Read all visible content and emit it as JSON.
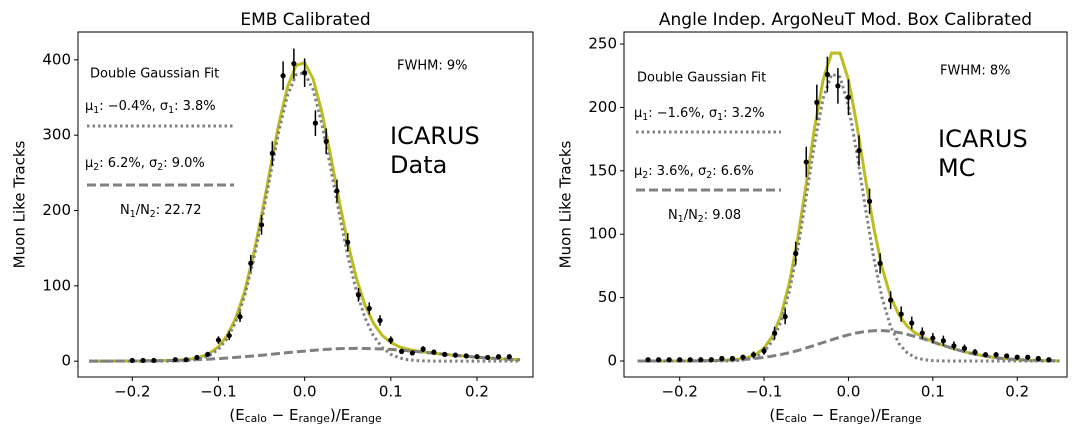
{
  "chart_data": [
    {
      "type": "errorbar",
      "title": "EMB Calibrated",
      "xlabel": [
        "(E",
        "calo",
        " − E",
        "range",
        ")/E",
        "range"
      ],
      "ylabel": "Muon Like Tracks",
      "xlim": [
        -0.263,
        0.265
      ],
      "ylim": [
        -21,
        437
      ],
      "xticks": [
        {
          "value": -0.2,
          "label": "−0.2"
        },
        {
          "value": -0.1,
          "label": "−0.1"
        },
        {
          "value": 0,
          "label": "0.0"
        },
        0.1,
        0.2
      ],
      "yticks": [
        0,
        100,
        200,
        300,
        400
      ],
      "fit_title": "Double Gaussian Fit",
      "fwhm": "FWHM: 9%",
      "experiment": [
        "ICARUS",
        "Data"
      ],
      "ratio": [
        "N",
        "1",
        "/N",
        "2",
        ": 22.72"
      ],
      "series": [
        {
          "style": "solid",
          "color": "#bcbd22",
          "x": [
            -0.25,
            -0.24,
            -0.23,
            -0.22,
            -0.21,
            -0.2,
            -0.19,
            -0.18,
            -0.17,
            -0.16,
            -0.15,
            -0.14,
            -0.13,
            -0.12,
            -0.11,
            -0.1,
            -0.09,
            -0.08,
            -0.07,
            -0.06,
            -0.05,
            -0.04,
            -0.03,
            -0.02,
            -0.01,
            0,
            0.01,
            0.02,
            0.03,
            0.04,
            0.05,
            0.06,
            0.07,
            0.08,
            0.09,
            0.1,
            0.11,
            0.12,
            0.13,
            0.14,
            0.15,
            0.16,
            0.17,
            0.18,
            0.19,
            0.2,
            0.21,
            0.22,
            0.23,
            0.24,
            0.25
          ],
          "values": [
            0,
            0.1,
            0.1,
            0.2,
            0.2,
            0.2,
            0.3,
            0.5,
            0.6,
            0.9,
            1.2,
            1.9,
            3.3,
            6.0,
            10.7,
            19.1,
            34.0,
            57.1,
            90.9,
            137.8,
            193.4,
            254.8,
            314.8,
            363.7,
            392.6,
            396.3,
            374.3,
            330.5,
            274.0,
            213.5,
            157.1,
            110.4,
            74.5,
            50.1,
            34.3,
            24.7,
            19.1,
            15.8,
            13.6,
            12.0,
            10.6,
            9.4,
            8.2,
            7.2,
            6.2,
            5.2,
            4.4,
            3.7,
            3.0,
            2.4,
            1.9
          ]
        },
        {
          "style": "dotted",
          "color": "#808080",
          "name": [
            "μ",
            "1",
            ": −0.4%, σ",
            "1",
            ": 3.8%"
          ],
          "x": [
            -0.25,
            -0.24,
            -0.23,
            -0.22,
            -0.21,
            -0.2,
            -0.19,
            -0.18,
            -0.17,
            -0.16,
            -0.15,
            -0.14,
            -0.13,
            -0.12,
            -0.11,
            -0.1,
            -0.09,
            -0.08,
            -0.07,
            -0.06,
            -0.05,
            -0.04,
            -0.03,
            -0.02,
            -0.01,
            0,
            0.01,
            0.02,
            0.03,
            0.04,
            0.05,
            0.06,
            0.07,
            0.08,
            0.09,
            0.1,
            0.11,
            0.12,
            0.13,
            0.14,
            0.15,
            0.16,
            0.17,
            0.18,
            0.19,
            0.2,
            0.21,
            0.22,
            0.23,
            0.24,
            0.25
          ],
          "values": [
            0,
            0,
            0,
            0,
            0,
            0,
            0,
            0,
            0,
            0.1,
            0.2,
            0.6,
            1.6,
            3.7,
            7.9,
            15.7,
            29.8,
            52.1,
            85.0,
            130.9,
            185.5,
            245.8,
            304.6,
            352.4,
            380.2,
            382.9,
            359.9,
            315.2,
            258.0,
            196.9,
            140.2,
            93.4,
            57.6,
            33.5,
            18.1,
            9.1,
            4.3,
            1.9,
            0.8,
            0.3,
            0.1,
            0,
            0,
            0,
            0,
            0,
            0,
            0,
            0,
            0,
            0
          ]
        },
        {
          "style": "dashed",
          "color": "#808080",
          "name": [
            "μ",
            "2",
            ": 6.2%, σ",
            "2",
            ": 9.0%"
          ],
          "x": [
            -0.25,
            -0.24,
            -0.23,
            -0.22,
            -0.21,
            -0.2,
            -0.19,
            -0.18,
            -0.17,
            -0.16,
            -0.15,
            -0.14,
            -0.13,
            -0.12,
            -0.11,
            -0.1,
            -0.09,
            -0.08,
            -0.07,
            -0.06,
            -0.05,
            -0.04,
            -0.03,
            -0.02,
            -0.01,
            0,
            0.01,
            0.02,
            0.03,
            0.04,
            0.05,
            0.06,
            0.07,
            0.08,
            0.09,
            0.1,
            0.11,
            0.12,
            0.13,
            0.14,
            0.15,
            0.16,
            0.17,
            0.18,
            0.19,
            0.2,
            0.21,
            0.22,
            0.23,
            0.24,
            0.25
          ],
          "values": [
            0,
            0.1,
            0.1,
            0.2,
            0.2,
            0.2,
            0.3,
            0.5,
            0.6,
            0.8,
            1.0,
            1.3,
            1.7,
            2.3,
            2.8,
            3.4,
            4.2,
            5.0,
            5.9,
            6.9,
            7.9,
            9.0,
            10.2,
            11.3,
            12.4,
            13.4,
            14.4,
            15.3,
            16.0,
            16.6,
            16.9,
            17.0,
            16.9,
            16.6,
            16.2,
            15.6,
            14.8,
            13.9,
            12.8,
            11.7,
            10.5,
            9.4,
            8.2,
            7.2,
            6.2,
            5.2,
            4.4,
            3.7,
            3.0,
            2.4,
            1.9
          ]
        },
        {
          "style": "points",
          "color": "#000000",
          "x": [
            -0.2,
            -0.1875,
            -0.175,
            -0.15,
            -0.1375,
            -0.125,
            -0.1125,
            -0.1,
            -0.0875,
            -0.075,
            -0.0625,
            -0.05,
            -0.0375,
            -0.025,
            -0.0125,
            0,
            0.0125,
            0.025,
            0.0375,
            0.05,
            0.0625,
            0.075,
            0.0875,
            0.1,
            0.1125,
            0.125,
            0.1375,
            0.15,
            0.1625,
            0.175,
            0.1875,
            0.2,
            0.2125,
            0.225,
            0.2375
          ],
          "values": [
            1,
            1,
            1,
            2,
            2,
            5,
            9,
            28,
            34,
            59,
            130,
            181,
            276,
            379,
            395,
            383,
            316,
            292,
            226,
            158,
            88,
            70,
            54,
            28,
            13,
            11,
            16,
            12,
            9,
            8,
            7,
            6,
            5,
            6,
            6
          ],
          "errors": [
            1,
            1,
            1,
            1.5,
            1.5,
            2,
            3,
            5,
            6,
            7,
            11,
            13,
            16,
            19,
            20,
            19,
            17,
            17,
            15,
            12,
            9,
            8,
            7,
            5,
            3.5,
            3,
            4,
            3.5,
            3,
            3,
            2.5,
            2.5,
            2,
            2.5,
            2.5
          ]
        }
      ]
    },
    {
      "type": "errorbar",
      "title": "Angle Indep. ArgoNeuT Mod. Box Calibrated",
      "xlabel": [
        "(E",
        "calo",
        " − E",
        "range",
        ")/E",
        "range"
      ],
      "ylabel": "Muon Like Tracks",
      "xlim": [
        -0.266,
        0.259
      ],
      "ylim": [
        -12.6,
        259.5
      ],
      "xticks": [
        {
          "value": -0.2,
          "label": "−0.2"
        },
        {
          "value": -0.1,
          "label": "−0.1"
        },
        {
          "value": 0,
          "label": "0.0"
        },
        0.1,
        0.2
      ],
      "yticks": [
        0,
        50,
        100,
        150,
        200,
        250
      ],
      "fit_title": "Double Gaussian Fit",
      "fwhm": "FWHM: 8%",
      "experiment": [
        "ICARUS",
        "MC"
      ],
      "ratio": [
        "N",
        "1",
        "/N",
        "2",
        ": 9.08"
      ],
      "series": [
        {
          "style": "solid",
          "color": "#bcbd22",
          "x": [
            -0.25,
            -0.24,
            -0.23,
            -0.22,
            -0.21,
            -0.2,
            -0.19,
            -0.18,
            -0.17,
            -0.16,
            -0.15,
            -0.14,
            -0.13,
            -0.12,
            -0.11,
            -0.1,
            -0.09,
            -0.08,
            -0.07,
            -0.06,
            -0.05,
            -0.04,
            -0.03,
            -0.02,
            -0.01,
            0,
            0.01,
            0.02,
            0.03,
            0.04,
            0.05,
            0.06,
            0.07,
            0.08,
            0.09,
            0.1,
            0.11,
            0.12,
            0.13,
            0.14,
            0.15,
            0.16,
            0.17,
            0.18,
            0.19,
            0.2,
            0.21,
            0.22,
            0.23,
            0.24,
            0.25
          ],
          "values": [
            0,
            0,
            0,
            0,
            0,
            0,
            0.1,
            0.1,
            0.2,
            0.3,
            0.5,
            0.8,
            1.4,
            2.7,
            5.1,
            10.2,
            19.7,
            36.0,
            61.6,
            96.9,
            140.0,
            184.5,
            221.8,
            242.9,
            242.8,
            221.9,
            186.1,
            144.4,
            105.1,
            73.3,
            50.6,
            36.1,
            27.2,
            21.7,
            18.2,
            15.3,
            12.9,
            10.7,
            8.7,
            6.9,
            5.4,
            4.1,
            3.1,
            2.2,
            1.6,
            1.1,
            0.8,
            0.5,
            0.3,
            0.2,
            0.1
          ]
        },
        {
          "style": "dotted",
          "color": "#808080",
          "name": [
            "μ",
            "1",
            ": −1.6%, σ",
            "1",
            ": 3.2%"
          ],
          "x": [
            -0.25,
            -0.24,
            -0.23,
            -0.22,
            -0.21,
            -0.2,
            -0.19,
            -0.18,
            -0.17,
            -0.16,
            -0.15,
            -0.14,
            -0.13,
            -0.12,
            -0.11,
            -0.1,
            -0.09,
            -0.08,
            -0.07,
            -0.06,
            -0.05,
            -0.04,
            -0.03,
            -0.02,
            -0.01,
            0,
            0.01,
            0.02,
            0.03,
            0.04,
            0.05,
            0.06,
            0.07,
            0.08,
            0.09,
            0.1,
            0.11,
            0.12,
            0.13,
            0.14,
            0.15,
            0.16,
            0.17,
            0.18,
            0.19,
            0.2,
            0.21,
            0.22,
            0.23,
            0.24,
            0.25
          ],
          "values": [
            0,
            0,
            0,
            0,
            0,
            0,
            0,
            0,
            0,
            0,
            0,
            0.1,
            0.4,
            1.2,
            3.0,
            7.3,
            15.8,
            30.9,
            55.0,
            88.6,
            129.7,
            172.1,
            207.2,
            226.2,
            224.0,
            201.2,
            163.9,
            121.1,
            81.2,
            49.3,
            27.1,
            13.6,
            6.2,
            2.5,
            1.0,
            0.3,
            0.1,
            0,
            0,
            0,
            0,
            0,
            0,
            0,
            0,
            0,
            0,
            0,
            0,
            0,
            0
          ]
        },
        {
          "style": "dashed",
          "color": "#808080",
          "name": [
            "μ",
            "2",
            ": 3.6%, σ",
            "2",
            ": 6.6%"
          ],
          "x": [
            -0.25,
            -0.24,
            -0.23,
            -0.22,
            -0.21,
            -0.2,
            -0.19,
            -0.18,
            -0.17,
            -0.16,
            -0.15,
            -0.14,
            -0.13,
            -0.12,
            -0.11,
            -0.1,
            -0.09,
            -0.08,
            -0.07,
            -0.06,
            -0.05,
            -0.04,
            -0.03,
            -0.02,
            -0.01,
            0,
            0.01,
            0.02,
            0.03,
            0.04,
            0.05,
            0.06,
            0.07,
            0.08,
            0.09,
            0.1,
            0.11,
            0.12,
            0.13,
            0.14,
            0.15,
            0.16,
            0.17,
            0.18,
            0.19,
            0.2,
            0.21,
            0.22,
            0.23,
            0.24,
            0.25
          ],
          "values": [
            0,
            0,
            0,
            0,
            0,
            0,
            0.1,
            0.1,
            0.2,
            0.3,
            0.5,
            0.7,
            1.0,
            1.5,
            2.1,
            2.9,
            3.9,
            5.1,
            6.6,
            8.3,
            10.3,
            12.4,
            14.6,
            16.7,
            18.8,
            20.7,
            22.2,
            23.3,
            23.9,
            24.0,
            23.5,
            22.5,
            21.0,
            19.2,
            17.2,
            15.0,
            12.8,
            10.7,
            8.7,
            6.9,
            5.4,
            4.1,
            3.1,
            2.2,
            1.6,
            1.1,
            0.8,
            0.5,
            0.3,
            0.2,
            0.1
          ]
        },
        {
          "style": "points",
          "color": "#000000",
          "x": [
            -0.2375,
            -0.225,
            -0.2125,
            -0.2,
            -0.1875,
            -0.175,
            -0.1625,
            -0.15,
            -0.1375,
            -0.125,
            -0.1125,
            -0.1,
            -0.0875,
            -0.075,
            -0.0625,
            -0.05,
            -0.0375,
            -0.025,
            -0.0125,
            0,
            0.0125,
            0.025,
            0.0375,
            0.05,
            0.0625,
            0.075,
            0.0875,
            0.1,
            0.1125,
            0.125,
            0.1375,
            0.15,
            0.1625,
            0.175,
            0.1875,
            0.2,
            0.2125,
            0.225,
            0.2375
          ],
          "values": [
            1,
            1,
            1,
            1,
            1,
            1,
            1,
            2,
            2,
            3,
            5,
            8,
            22,
            35,
            85,
            157,
            204,
            226,
            217,
            208,
            166,
            126,
            77,
            48,
            37,
            30,
            22,
            18,
            16,
            12,
            10,
            7,
            5,
            5,
            4,
            3,
            3,
            2,
            1
          ],
          "errors": [
            1,
            1,
            1,
            1,
            1,
            1,
            1,
            1.5,
            1.5,
            2,
            2.5,
            3,
            5,
            6,
            9,
            12,
            14,
            14,
            14,
            14,
            12,
            10,
            8,
            7,
            6,
            5,
            4.5,
            4,
            4,
            3.5,
            3,
            2.5,
            2,
            2,
            2,
            1.5,
            1.5,
            1.5,
            1
          ]
        }
      ]
    }
  ]
}
